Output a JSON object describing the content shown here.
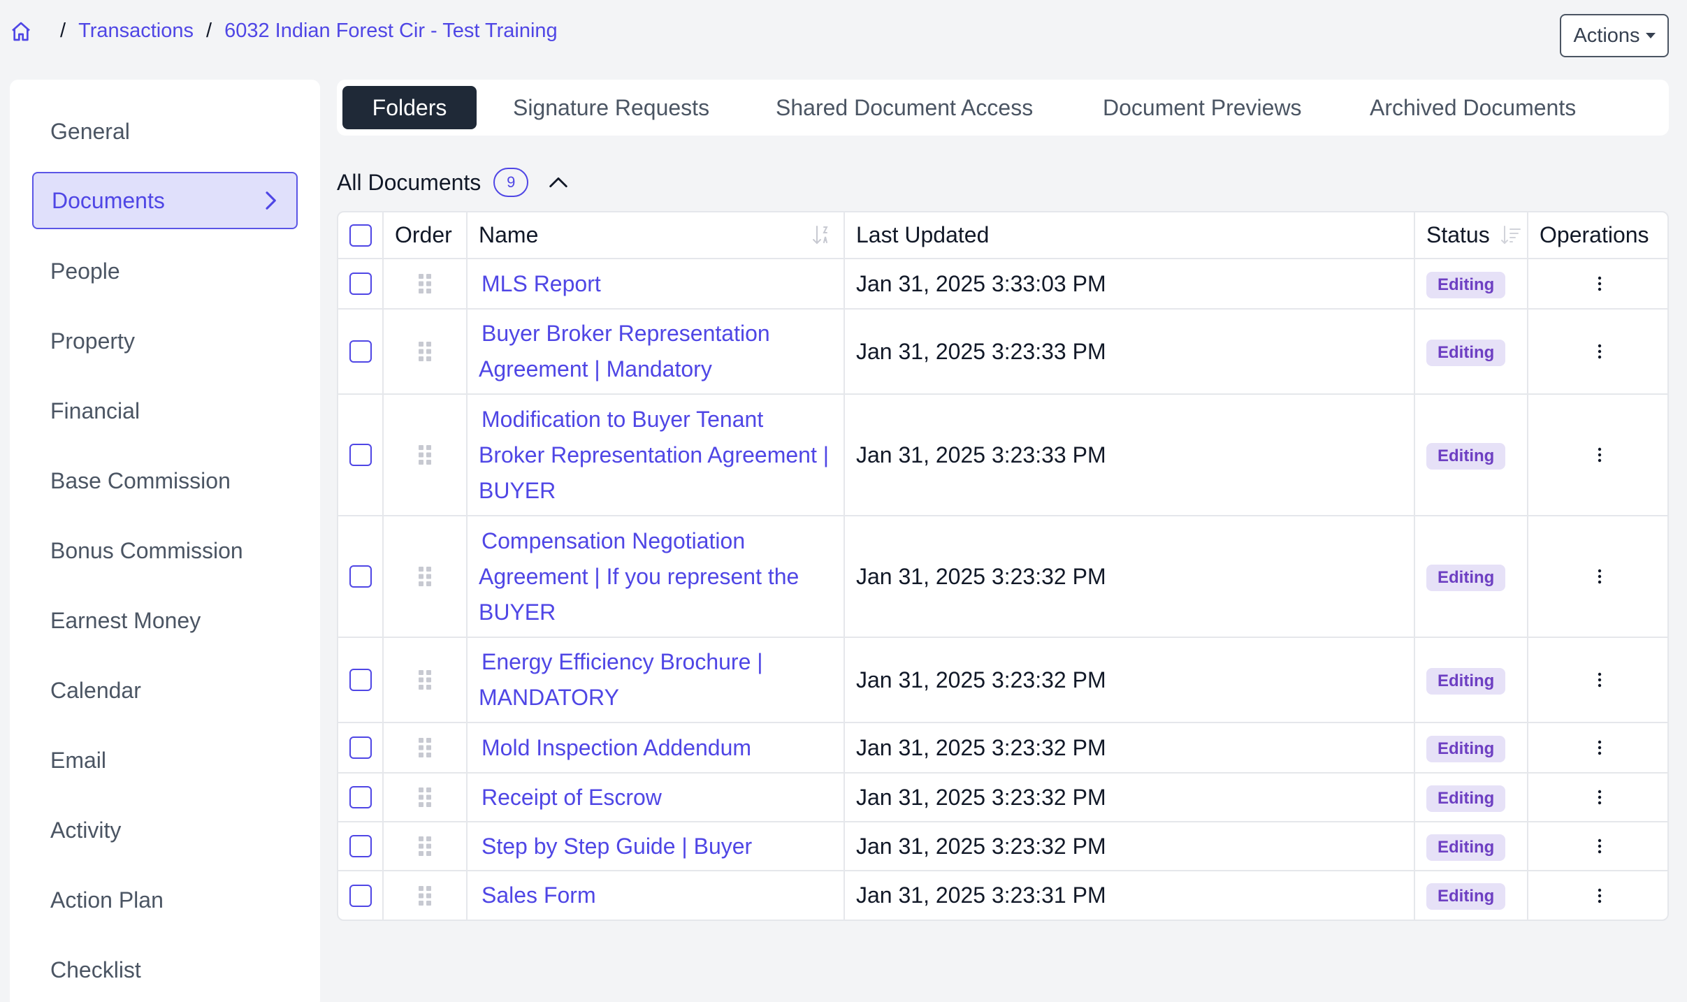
{
  "breadcrumb": {
    "items": [
      "Transactions",
      "6032 Indian Forest Cir - Test Training"
    ],
    "separator": "/"
  },
  "header": {
    "actions_label": "Actions"
  },
  "sidebar": {
    "items": [
      "General",
      "Documents",
      "People",
      "Property",
      "Financial",
      "Base Commission",
      "Bonus Commission",
      "Earnest Money",
      "Calendar",
      "Email",
      "Activity",
      "Action Plan",
      "Checklist"
    ],
    "active": "Documents"
  },
  "tabs": [
    "Folders",
    "Signature Requests",
    "Shared Document Access",
    "Document Previews",
    "Archived Documents"
  ],
  "documents": {
    "title": "All Documents",
    "count": "9",
    "columns": [
      "Order",
      "Name",
      "Last Updated",
      "Status",
      "Operations"
    ],
    "rows": [
      {
        "name": [
          "MLS Report"
        ],
        "updated": "Jan 31, 2025 3:33:03 PM",
        "status": "Editing"
      },
      {
        "name": [
          "Buyer Broker Representation",
          "Agreement | Mandatory"
        ],
        "updated": "Jan 31, 2025 3:23:33 PM",
        "status": "Editing"
      },
      {
        "name": [
          "Modification to Buyer Tenant",
          "Broker Representation Agreement |",
          "BUYER"
        ],
        "updated": "Jan 31, 2025 3:23:33 PM",
        "status": "Editing"
      },
      {
        "name": [
          "Compensation Negotiation",
          "Agreement | If you represent the",
          "BUYER"
        ],
        "updated": "Jan 31, 2025 3:23:32 PM",
        "status": "Editing"
      },
      {
        "name": [
          "Energy Efficiency Brochure |",
          "MANDATORY"
        ],
        "updated": "Jan 31, 2025 3:23:32 PM",
        "status": "Editing"
      },
      {
        "name": [
          "Mold Inspection Addendum"
        ],
        "updated": "Jan 31, 2025 3:23:32 PM",
        "status": "Editing"
      },
      {
        "name": [
          "Receipt of Escrow"
        ],
        "updated": "Jan 31, 2025 3:23:32 PM",
        "status": "Editing"
      },
      {
        "name": [
          "Step by Step Guide | Buyer"
        ],
        "updated": "Jan 31, 2025 3:23:32 PM",
        "status": "Editing"
      },
      {
        "name": [
          "Sales Form"
        ],
        "updated": "Jan 31, 2025 3:23:31 PM",
        "status": "Editing"
      }
    ]
  },
  "colors": {
    "accent": "#4f46e5",
    "badge_bg": "#e6e1f7",
    "badge_text": "#6d3fc2",
    "active_tab": "#1f2937"
  }
}
